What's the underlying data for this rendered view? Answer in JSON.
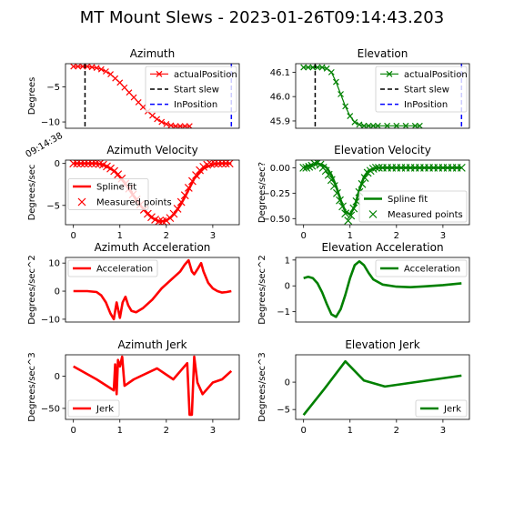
{
  "figure": {
    "suptitle": "MT Mount Slews - 2023-01-26T09:14:43.203",
    "timestamp_label": "09:14:38"
  },
  "colors": {
    "azimuth": "#ff0000",
    "elevation": "#008000",
    "start_slew": "#000000",
    "in_position": "#0000ff",
    "axes": "#000000"
  },
  "chart_data": [
    {
      "id": "az_pos",
      "type": "line",
      "title": "Azimuth",
      "xlabel": "",
      "ylabel": "Degrees",
      "xlim": [
        -0.17,
        3.57
      ],
      "ylim": [
        -10.9,
        -1.7
      ],
      "xticks": [],
      "yticks": [
        -5,
        -10
      ],
      "ytick_labels": [
        "−5",
        "−10"
      ],
      "grid": false,
      "legend": {
        "placement": "top-right"
      },
      "series": [
        {
          "name": "actualPosition",
          "style": "line-markers",
          "color": "#ff0000",
          "x": [
            0,
            0.1,
            0.2,
            0.3,
            0.4,
            0.5,
            0.6,
            0.7,
            0.8,
            0.9,
            1.0,
            1.1,
            1.2,
            1.3,
            1.4,
            1.5,
            1.6,
            1.7,
            1.8,
            1.9,
            2.0,
            2.1,
            2.2,
            2.3,
            2.4,
            2.5
          ],
          "y": [
            -2.1,
            -2.1,
            -2.1,
            -2.1,
            -2.2,
            -2.3,
            -2.5,
            -2.8,
            -3.2,
            -3.8,
            -4.4,
            -5.1,
            -5.8,
            -6.5,
            -7.2,
            -7.9,
            -8.5,
            -9.1,
            -9.6,
            -10.0,
            -10.3,
            -10.5,
            -10.6,
            -10.6,
            -10.6,
            -10.6
          ]
        },
        {
          "name": "Start slew",
          "style": "vline-dashed",
          "color": "#000000",
          "x": [
            0.25
          ]
        },
        {
          "name": "InPosition",
          "style": "vline-dashed",
          "color": "#0000ff",
          "x": [
            3.4
          ]
        }
      ]
    },
    {
      "id": "el_pos",
      "type": "line",
      "title": "Elevation",
      "xlabel": "",
      "ylabel": "",
      "xlim": [
        -0.17,
        3.57
      ],
      "ylim": [
        45.87,
        46.135
      ],
      "xticks": [],
      "yticks": [
        46.1,
        46.0,
        45.9
      ],
      "ytick_labels": [
        "46.1",
        "46.0",
        "45.9"
      ],
      "grid": false,
      "legend": {
        "placement": "top-right"
      },
      "series": [
        {
          "name": "actualPosition",
          "style": "line-markers",
          "color": "#008000",
          "x": [
            0,
            0.1,
            0.2,
            0.3,
            0.4,
            0.5,
            0.6,
            0.7,
            0.8,
            0.9,
            1.0,
            1.1,
            1.2,
            1.3,
            1.4,
            1.5,
            1.6,
            1.8,
            2.0,
            2.2,
            2.4,
            2.5
          ],
          "y": [
            46.12,
            46.12,
            46.12,
            46.12,
            46.12,
            46.115,
            46.1,
            46.06,
            46.01,
            45.96,
            45.92,
            45.895,
            45.885,
            45.88,
            45.88,
            45.88,
            45.88,
            45.88,
            45.88,
            45.88,
            45.88,
            45.88
          ]
        },
        {
          "name": "Start slew",
          "style": "vline-dashed",
          "color": "#000000",
          "x": [
            0.25
          ]
        },
        {
          "name": "InPosition",
          "style": "vline-dashed",
          "color": "#0000ff",
          "x": [
            3.4
          ]
        }
      ]
    },
    {
      "id": "az_vel",
      "type": "line",
      "title": "Azimuth Velocity",
      "xlabel": "",
      "ylabel": "Degrees/sec",
      "xlim": [
        -0.17,
        3.57
      ],
      "ylim": [
        -7.3,
        0.4
      ],
      "xticks": [
        0,
        1,
        2,
        3
      ],
      "yticks": [
        0,
        -5
      ],
      "ytick_labels": [
        "0",
        "−5"
      ],
      "grid": false,
      "legend": {
        "placement": "center-left"
      },
      "series": [
        {
          "name": "Spline fit",
          "style": "line",
          "color": "#ff0000",
          "x": [
            0,
            0.3,
            0.5,
            0.6,
            0.7,
            0.8,
            0.9,
            1.0,
            1.1,
            1.2,
            1.3,
            1.4,
            1.5,
            1.6,
            1.7,
            1.8,
            1.9,
            2.0,
            2.1,
            2.2,
            2.3,
            2.4,
            2.5,
            2.6,
            2.8,
            3.0,
            3.2,
            3.4
          ],
          "y": [
            0,
            0,
            0,
            -0.1,
            -0.3,
            -0.6,
            -1.0,
            -1.6,
            -2.3,
            -3.1,
            -3.9,
            -4.7,
            -5.4,
            -6.0,
            -6.5,
            -6.8,
            -6.9,
            -6.8,
            -6.4,
            -5.8,
            -5.0,
            -4.0,
            -2.9,
            -1.8,
            -0.6,
            -0.1,
            0,
            0
          ]
        },
        {
          "name": "Measured points",
          "style": "markers",
          "color": "#ff0000",
          "x": [
            0,
            0.08,
            0.16,
            0.24,
            0.32,
            0.4,
            0.48,
            0.56,
            0.64,
            0.72,
            0.8,
            0.88,
            0.96,
            1.04,
            1.12,
            1.2,
            1.28,
            1.36,
            1.44,
            1.52,
            1.6,
            1.68,
            1.76,
            1.84,
            1.92,
            2.0,
            2.08,
            2.16,
            2.24,
            2.32,
            2.4,
            2.48,
            2.56,
            2.64,
            2.72,
            2.8,
            2.88,
            2.96,
            3.04,
            3.12,
            3.2,
            3.28,
            3.36
          ],
          "y": [
            0,
            0,
            0,
            0,
            0,
            0,
            0,
            -0.05,
            -0.15,
            -0.35,
            -0.6,
            -0.9,
            -1.3,
            -1.8,
            -2.4,
            -3.0,
            -3.7,
            -4.3,
            -4.9,
            -5.5,
            -6.0,
            -6.4,
            -6.7,
            -6.9,
            -6.9,
            -6.8,
            -6.5,
            -6.0,
            -5.4,
            -4.6,
            -3.8,
            -2.9,
            -2.1,
            -1.4,
            -0.8,
            -0.4,
            -0.15,
            -0.05,
            0,
            0,
            0,
            0,
            0
          ]
        }
      ]
    },
    {
      "id": "el_vel",
      "type": "line",
      "title": "Elevation Velocity",
      "xlabel": "",
      "ylabel": "Degrees/sec?",
      "xlim": [
        -0.17,
        3.57
      ],
      "ylim": [
        -0.56,
        0.075
      ],
      "xticks": [
        0,
        1,
        2,
        3
      ],
      "yticks": [
        0.0,
        -0.25,
        -0.5
      ],
      "ytick_labels": [
        "0.00",
        "−0.25",
        "−0.50"
      ],
      "grid": false,
      "legend": {
        "placement": "lower-right"
      },
      "series": [
        {
          "name": "Spline fit",
          "style": "line",
          "color": "#008000",
          "x": [
            0,
            0.1,
            0.2,
            0.3,
            0.4,
            0.5,
            0.6,
            0.7,
            0.8,
            0.9,
            1.0,
            1.1,
            1.2,
            1.3,
            1.4,
            1.5,
            1.6,
            1.8,
            2.0,
            2.2,
            2.5,
            3.0,
            3.4
          ],
          "y": [
            0,
            0.02,
            0.03,
            0.04,
            0.03,
            0,
            -0.07,
            -0.18,
            -0.32,
            -0.43,
            -0.46,
            -0.38,
            -0.22,
            -0.09,
            -0.03,
            -0.01,
            0,
            0,
            0,
            0,
            0,
            0,
            0
          ]
        },
        {
          "name": "Measured points",
          "style": "markers",
          "color": "#008000",
          "x": [
            0,
            0.06,
            0.12,
            0.18,
            0.24,
            0.3,
            0.36,
            0.42,
            0.48,
            0.54,
            0.6,
            0.66,
            0.72,
            0.78,
            0.84,
            0.9,
            0.96,
            1.02,
            1.08,
            1.14,
            1.2,
            1.26,
            1.32,
            1.38,
            1.44,
            1.5,
            1.56,
            1.62,
            1.7,
            1.8,
            1.9,
            2.0,
            2.1,
            2.2,
            2.3,
            2.4,
            2.5,
            2.6,
            2.7,
            2.8,
            2.9,
            3.0,
            3.1,
            3.2,
            3.3,
            3.4
          ],
          "y": [
            0,
            0,
            0.01,
            0.02,
            0.04,
            0.05,
            0.03,
            0,
            -0.03,
            -0.07,
            -0.12,
            -0.18,
            -0.25,
            -0.32,
            -0.38,
            -0.45,
            -0.52,
            -0.47,
            -0.4,
            -0.33,
            -0.24,
            -0.16,
            -0.1,
            -0.05,
            -0.03,
            -0.01,
            0,
            0,
            0,
            0,
            0,
            0,
            0,
            0,
            0,
            0,
            0,
            0,
            0,
            0,
            0,
            0,
            0,
            0,
            0,
            0
          ]
        }
      ]
    },
    {
      "id": "az_acc",
      "type": "line",
      "title": "Azimuth Acceleration",
      "xlabel": "",
      "ylabel": "Degrees/sec^2",
      "xlim": [
        -0.17,
        3.57
      ],
      "ylim": [
        -11,
        12
      ],
      "xticks": [],
      "yticks": [
        10,
        0,
        -10
      ],
      "ytick_labels": [
        "10",
        "0",
        "−10"
      ],
      "grid": false,
      "legend": {
        "placement": "top-left"
      },
      "series": [
        {
          "name": "Acceleration",
          "style": "line",
          "color": "#ff0000",
          "x": [
            0,
            0.3,
            0.5,
            0.6,
            0.7,
            0.8,
            0.87,
            0.93,
            1.0,
            1.06,
            1.12,
            1.18,
            1.25,
            1.35,
            1.5,
            1.7,
            1.9,
            2.1,
            2.3,
            2.4,
            2.48,
            2.55,
            2.6,
            2.68,
            2.75,
            2.8,
            2.9,
            3.0,
            3.1,
            3.2,
            3.3,
            3.4
          ],
          "y": [
            0,
            0,
            -0.3,
            -1.5,
            -4,
            -8,
            -10,
            -4,
            -9.5,
            -4,
            -2,
            -5,
            -7,
            -7.5,
            -6,
            -3,
            1,
            4,
            7,
            9.5,
            11,
            7,
            6,
            8,
            10,
            7,
            3,
            1,
            0,
            -0.5,
            -0.3,
            0
          ]
        }
      ]
    },
    {
      "id": "el_acc",
      "type": "line",
      "title": "Elevation Acceleration",
      "xlabel": "",
      "ylabel": "Degrees/sec^2",
      "xlim": [
        -0.17,
        3.57
      ],
      "ylim": [
        -1.4,
        1.1
      ],
      "xticks": [],
      "yticks": [
        1,
        0,
        -1
      ],
      "ytick_labels": [
        "1",
        "0",
        "−1"
      ],
      "grid": false,
      "legend": {
        "placement": "top-right"
      },
      "series": [
        {
          "name": "Acceleration",
          "style": "line",
          "color": "#008000",
          "x": [
            0,
            0.1,
            0.2,
            0.3,
            0.4,
            0.5,
            0.6,
            0.7,
            0.8,
            0.9,
            1.0,
            1.1,
            1.2,
            1.3,
            1.4,
            1.5,
            1.7,
            2.0,
            2.3,
            2.6,
            3.0,
            3.4
          ],
          "y": [
            0.3,
            0.35,
            0.3,
            0.1,
            -0.25,
            -0.7,
            -1.1,
            -1.2,
            -0.9,
            -0.35,
            0.3,
            0.8,
            0.95,
            0.8,
            0.5,
            0.25,
            0.05,
            -0.03,
            -0.05,
            -0.02,
            0.03,
            0.1
          ]
        }
      ]
    },
    {
      "id": "az_jerk",
      "type": "line",
      "title": "Azimuth Jerk",
      "xlabel": "",
      "ylabel": "Degrees/sec^3",
      "xlim": [
        -0.17,
        3.57
      ],
      "ylim": [
        -67,
        33
      ],
      "xticks": [
        0,
        1,
        2,
        3
      ],
      "yticks": [
        0,
        -50
      ],
      "ytick_labels": [
        "0",
        "−50"
      ],
      "grid": false,
      "legend": {
        "placement": "lower-left"
      },
      "series": [
        {
          "name": "Jerk",
          "style": "line",
          "color": "#ff0000",
          "x": [
            0,
            0.5,
            0.87,
            0.9,
            0.93,
            0.96,
            1.0,
            1.05,
            1.1,
            1.3,
            1.8,
            2.15,
            2.45,
            2.5,
            2.55,
            2.6,
            2.67,
            2.78,
            3.0,
            3.2,
            3.4
          ],
          "y": [
            15,
            -5,
            -22,
            18,
            -28,
            25,
            15,
            30,
            -15,
            -5,
            12,
            -5,
            20,
            -60,
            -60,
            30,
            -10,
            -28,
            -10,
            -5,
            8
          ]
        }
      ]
    },
    {
      "id": "el_jerk",
      "type": "line",
      "title": "Elevation Jerk",
      "xlabel": "",
      "ylabel": "Degrees/sec^3",
      "xlim": [
        -0.17,
        3.57
      ],
      "ylim": [
        -6.8,
        5.0
      ],
      "xticks": [
        0,
        1,
        2,
        3
      ],
      "yticks": [
        0,
        -5
      ],
      "ytick_labels": [
        "0",
        "−5"
      ],
      "grid": false,
      "legend": {
        "placement": "lower-right"
      },
      "series": [
        {
          "name": "Jerk",
          "style": "line",
          "color": "#008000",
          "x": [
            0,
            0.45,
            0.9,
            1.3,
            1.75,
            3.4
          ],
          "y": [
            -6,
            -1.2,
            3.8,
            0.3,
            -0.8,
            1.2
          ]
        }
      ]
    }
  ]
}
